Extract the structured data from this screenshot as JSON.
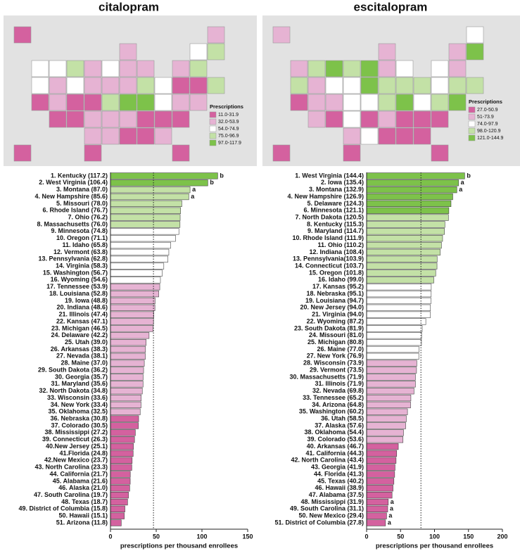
{
  "chart_data": [
    {
      "type": "bar",
      "title": "citalopram",
      "xlabel": "prescriptions per thousand enrollees",
      "categories": [
        "1. Kentucky (117.2)",
        "2. West Virginia (106.4)",
        "3. Montana (87.0)",
        "4. New Hampshire (85.6)",
        "5. Missouri (78.0)",
        "6. Rhode Island (76.7)",
        "7. Ohio (76.2)",
        "8. Massachusetts (76.0)",
        "9. Minnesota (74.8)",
        "10. Oregon (71.1)",
        "11. Idaho (65.8)",
        "12. Vermont (63.8)",
        "13. Pennsylvania (62.8)",
        "14. Virginia (58.3)",
        "15. Washington (56.7)",
        "16. Wyoming (54.6)",
        "17. Tennessee (53.9)",
        "18. Louisiana (52.8)",
        "19. Iowa (48.8)",
        "20. Indiana (48.6)",
        "21. Illinois (47.4)",
        "22. Kansas (47.1)",
        "23. Michigan (46.5)",
        "24. Delaware (42.2)",
        "25. Utah (39.0)",
        "26. Arkansas (38.3)",
        "27. Nevada (38.1)",
        "28. Maine (37.0)",
        "29. South Dakota (36.2)",
        "30. Georgia (35.7)",
        "31. Maryland (35.6)",
        "32. North Dakota (34.8)",
        "33. Wisconsin (33.6)",
        "34. New York (33.4)",
        "35. Oklahoma (32.5)",
        "36. Nebraska (30.8)",
        "37. Colorado (30.5)",
        "38. Mississippi (27.2)",
        "39. Connecticut (26.3)",
        "40.New Jersey (25.1)",
        "41.Florida (24.8)",
        "42.New Mexico (23.7)",
        "43. North Carolina (23.3)",
        "44. California (21.7)",
        "45. Alabama (21.6)",
        "46. Alaska (21.0)",
        "47. South Carolina (19.7)",
        "48. Texas (18.7)",
        "49. District of Columbia (15.8)",
        "50. Hawaii (15.1)",
        "51. Arizona (11.8)"
      ],
      "values": [
        117.2,
        106.4,
        87.0,
        85.6,
        78.0,
        76.7,
        76.2,
        76.0,
        74.8,
        71.1,
        65.8,
        63.8,
        62.8,
        58.3,
        56.7,
        54.6,
        53.9,
        52.8,
        48.8,
        48.6,
        47.4,
        47.1,
        46.5,
        42.2,
        39.0,
        38.3,
        38.1,
        37.0,
        36.2,
        35.7,
        35.6,
        34.8,
        33.6,
        33.4,
        32.5,
        30.8,
        30.5,
        27.2,
        26.3,
        25.1,
        24.8,
        23.7,
        23.3,
        21.7,
        21.6,
        21.0,
        19.7,
        18.7,
        15.8,
        15.1,
        11.8
      ],
      "annotations": [
        "b",
        "b",
        "a",
        "a",
        null,
        null,
        null,
        null,
        null,
        null,
        null,
        null,
        null,
        null,
        null,
        null,
        null,
        null,
        null,
        null,
        null,
        null,
        null,
        null,
        null,
        null,
        null,
        null,
        null,
        null,
        null,
        null,
        null,
        null,
        null,
        null,
        null,
        null,
        null,
        null,
        null,
        null,
        null,
        null,
        null,
        null,
        null,
        null,
        null,
        null,
        null
      ],
      "reference_line": 47,
      "xlim": [
        0,
        150
      ],
      "xticks": [
        0,
        50,
        100,
        150
      ],
      "legend_title": "Prescriptions",
      "legend": [
        {
          "label": "11.0-31.9",
          "range": [
            11.0,
            31.9
          ],
          "color": "#d4619f"
        },
        {
          "label": "32.0-53.9",
          "range": [
            32.0,
            53.9
          ],
          "color": "#e6b3d3"
        },
        {
          "label": "54.0-74.9",
          "range": [
            54.0,
            74.9
          ],
          "color": "#ffffff"
        },
        {
          "label": "75.0-96.9",
          "range": [
            75.0,
            96.9
          ],
          "color": "#c3e1a6"
        },
        {
          "label": "97.0-117.9",
          "range": [
            97.0,
            117.9
          ],
          "color": "#7dc24a"
        }
      ]
    },
    {
      "type": "bar",
      "title": "escitalopram",
      "xlabel": "prescriptions per thousand enrollees",
      "categories": [
        "1. West Virginia (144.4)",
        "2. Iowa (135.4)",
        "3. Montana (132.9)",
        "4. New Hampshire (126.9)",
        "5. Delaware (124.3)",
        "6. Minnesota (121.1)",
        "7. North Dakota (120.5)",
        "8. Kentucky (115.3)",
        "9. Maryland (114.7)",
        "10. Rhode Island (111.9)",
        "11. Ohio (110.2)",
        "12. Indiana (108.4)",
        "13. Pennsylvania(103.9)",
        "14. Connecticut (103.7)",
        "15. Oregon (101.8)",
        "16. Idaho (99.0)",
        "17. Kansas (95.2)",
        "18. Nebraska (95.1)",
        "19. Louisiana (94.7)",
        "20. New Jersey (94.0)",
        "21. Virginia (94.0)",
        "22. Wyoming (87.2)",
        "23. South Dakota (81.9)",
        "24. Missouri (81.0)",
        "25. Michigan (80.8)",
        "26. Maine (77.0)",
        "27. New York (76.9)",
        "28. Wisconsin (73.9)",
        "29. Vermont (73.5)",
        "30. Massachusetts (71.9)",
        "31. Illinois (71.9)",
        "32. Nevada (69.8)",
        "33. Tennessee (65.2)",
        "34. Arizona (64.8)",
        "35. Washington (60.2)",
        "36. Utah (58.5)",
        "37. Alaska (57.6)",
        "38. Oklahoma (54.4)",
        "39. Colorado (53.6)",
        "40. Arkansas (46.7)",
        "41. California (44.3)",
        "42. North Carolina (43.4)",
        "43. Georgia (41.9)",
        "44. Florida (41.3)",
        "45. Texas (40.2)",
        "46. Hawaii (38.9)",
        "47. Alabama (37.5)",
        "48. Mississippi (31.9)",
        "49. South Carolina (31.1)",
        "50. New Mexico (29.4)",
        "51. District of Columbia (27.8)"
      ],
      "values": [
        144.4,
        135.4,
        132.9,
        126.9,
        124.3,
        121.1,
        120.5,
        115.3,
        114.7,
        111.9,
        110.2,
        108.4,
        103.9,
        103.7,
        101.8,
        99.0,
        95.2,
        95.1,
        94.7,
        94.0,
        94.0,
        87.2,
        81.9,
        81.0,
        80.8,
        77.0,
        76.9,
        73.9,
        73.5,
        71.9,
        71.9,
        69.8,
        65.2,
        64.8,
        60.2,
        58.5,
        57.6,
        54.4,
        53.6,
        46.7,
        44.3,
        43.4,
        41.9,
        41.3,
        40.2,
        38.9,
        37.5,
        31.9,
        31.1,
        29.4,
        27.8
      ],
      "annotations": [
        "b",
        "a",
        "a",
        null,
        null,
        null,
        null,
        null,
        null,
        null,
        null,
        null,
        null,
        null,
        null,
        null,
        null,
        null,
        null,
        null,
        null,
        null,
        null,
        null,
        null,
        null,
        null,
        null,
        null,
        null,
        null,
        null,
        null,
        null,
        null,
        null,
        null,
        null,
        null,
        null,
        null,
        null,
        null,
        null,
        null,
        null,
        null,
        "a",
        "a",
        "a",
        "a"
      ],
      "reference_line": 80,
      "xlim": [
        0,
        200
      ],
      "xticks": [
        0,
        50,
        100,
        150,
        200
      ],
      "legend_title": "Prescriptions",
      "legend": [
        {
          "label": "27.0-50.9",
          "range": [
            27.0,
            50.9
          ],
          "color": "#d4619f"
        },
        {
          "label": "51-73.9",
          "range": [
            51,
            73.9
          ],
          "color": "#e6b3d3"
        },
        {
          "label": "74.0-97.9",
          "range": [
            74.0,
            97.9
          ],
          "color": "#ffffff"
        },
        {
          "label": "98.0-120.9",
          "range": [
            98.0,
            120.9
          ],
          "color": "#c3e1a6"
        },
        {
          "label": "121.0-144.9",
          "range": [
            121.0,
            144.9
          ],
          "color": "#7dc24a"
        }
      ]
    }
  ]
}
